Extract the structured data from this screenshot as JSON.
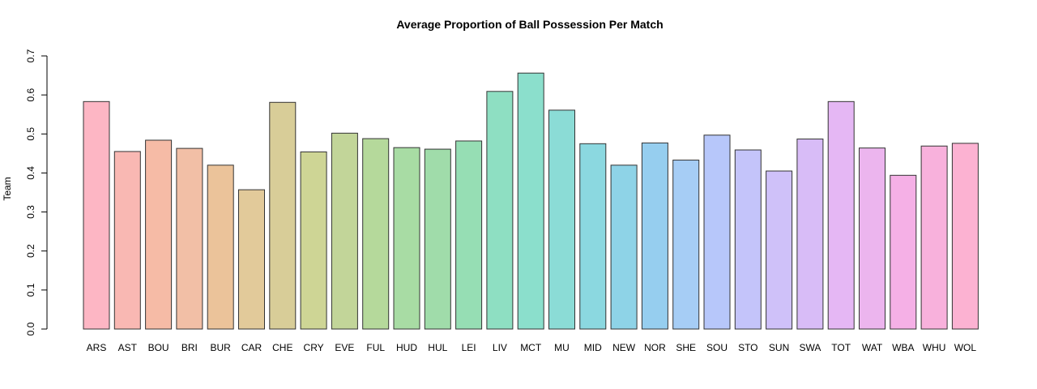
{
  "chart_data": {
    "type": "bar",
    "title": "Average Proportion of Ball Possession Per Match",
    "xlabel": "",
    "ylabel": "Team",
    "ylim": [
      0,
      0.7
    ],
    "yticks": [
      "0.0",
      "0.1",
      "0.2",
      "0.3",
      "0.4",
      "0.5",
      "0.6",
      "0.7"
    ],
    "grid": false,
    "categories": [
      "ARS",
      "AST",
      "BOU",
      "BRI",
      "BUR",
      "CAR",
      "CHE",
      "CRY",
      "EVE",
      "FUL",
      "HUD",
      "HUL",
      "LEI",
      "LIV",
      "MCT",
      "MU",
      "MID",
      "NEW",
      "NOR",
      "SHE",
      "SOU",
      "STO",
      "SUN",
      "SWA",
      "TOT",
      "WAT",
      "WBA",
      "WHU",
      "WOL"
    ],
    "values": [
      0.583,
      0.455,
      0.484,
      0.463,
      0.42,
      0.357,
      0.581,
      0.454,
      0.502,
      0.488,
      0.465,
      0.461,
      0.482,
      0.609,
      0.656,
      0.561,
      0.475,
      0.42,
      0.477,
      0.433,
      0.497,
      0.459,
      0.405,
      0.487,
      0.583,
      0.464,
      0.394,
      0.469,
      0.476
    ],
    "colors": [
      "#FDB6C4",
      "#F9B8B3",
      "#F6BBA6",
      "#F2BFA6",
      "#EBC39A",
      "#E2CA9A",
      "#D8CD98",
      "#CED595",
      "#C2D599",
      "#B5D99B",
      "#A8DCA4",
      "#A0DCAA",
      "#96DEB4",
      "#8EDFC2",
      "#8BDFCC",
      "#8BDCD6",
      "#8BD8E0",
      "#8ED3E7",
      "#96CEEF",
      "#A6CDF5",
      "#B7C7FA",
      "#C4C4FA",
      "#CFC1F9",
      "#D8BCF7",
      "#E5B7F4",
      "#ECB5EE",
      "#F5B0E6",
      "#F8B1DC",
      "#FCB2D2"
    ]
  }
}
